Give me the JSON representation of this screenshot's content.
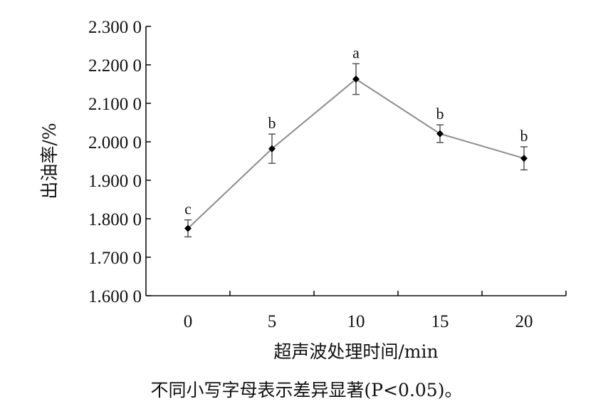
{
  "chart_data": {
    "type": "line",
    "xlabel": "超声波处理时间/min",
    "ylabel": "出油率/%",
    "x": [
      0,
      5,
      10,
      15,
      20
    ],
    "x_tick_labels": [
      "0",
      "5",
      "10",
      "15",
      "20"
    ],
    "y_tick_labels": [
      "1.600 0",
      "1.700 0",
      "1.800 0",
      "1.900 0",
      "2.000 0",
      "2.100 0",
      "2.200 0",
      "2.300 0"
    ],
    "y_ticks": [
      1.6,
      1.7,
      1.8,
      1.9,
      2.0,
      2.1,
      2.2,
      2.3
    ],
    "xlim": [
      -2.5,
      22.5
    ],
    "ylim": [
      1.6,
      2.3
    ],
    "series": [
      {
        "values": [
          1.775,
          1.982,
          2.163,
          2.021,
          1.957
        ],
        "error": [
          0.022,
          0.038,
          0.04,
          0.023,
          0.03
        ],
        "significance": [
          "c",
          "b",
          "a",
          "b",
          "b"
        ]
      }
    ],
    "line_color": "#8c8c8c",
    "marker_color": "#000000",
    "grid": false,
    "legend": "none"
  },
  "caption": "不同小写字母表示差异显著(P<0.05)。"
}
